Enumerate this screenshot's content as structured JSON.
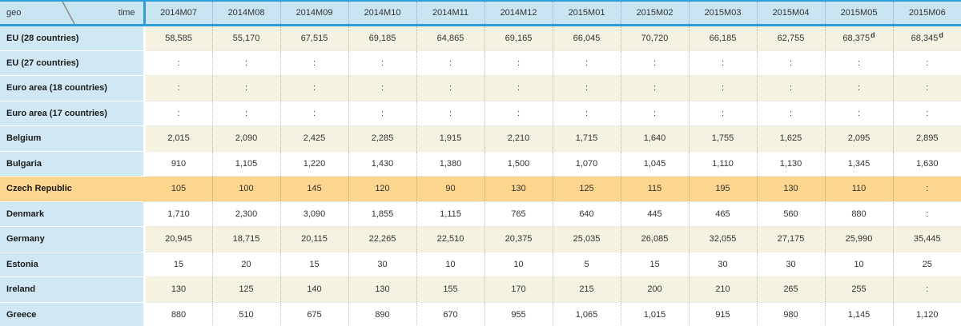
{
  "table": {
    "corner": {
      "row_dim": "geo",
      "col_dim": "time"
    },
    "columns": [
      "2014M07",
      "2014M08",
      "2014M09",
      "2014M10",
      "2014M11",
      "2014M12",
      "2015M01",
      "2015M02",
      "2015M03",
      "2015M04",
      "2015M05",
      "2015M06"
    ],
    "missing_symbol": ":",
    "rows": [
      {
        "label": "EU (28 countries)",
        "values": [
          "58,585",
          "55,170",
          "67,515",
          "69,185",
          "64,865",
          "69,165",
          "66,045",
          "70,720",
          "66,185",
          "62,755",
          {
            "v": "68,375",
            "flag": "d"
          },
          {
            "v": "68,345",
            "flag": "d"
          }
        ]
      },
      {
        "label": "EU (27 countries)",
        "values": [
          ":",
          ":",
          ":",
          ":",
          ":",
          ":",
          ":",
          ":",
          ":",
          ":",
          ":",
          ":"
        ]
      },
      {
        "label": "Euro area (18 countries)",
        "values": [
          ":",
          ":",
          ":",
          ":",
          ":",
          ":",
          ":",
          ":",
          ":",
          ":",
          ":",
          ":"
        ]
      },
      {
        "label": "Euro area (17 countries)",
        "values": [
          ":",
          ":",
          ":",
          ":",
          ":",
          ":",
          ":",
          ":",
          ":",
          ":",
          ":",
          ":"
        ]
      },
      {
        "label": "Belgium",
        "values": [
          "2,015",
          "2,090",
          "2,425",
          "2,285",
          "1,915",
          "2,210",
          "1,715",
          "1,640",
          "1,755",
          "1,625",
          "2,095",
          "2,895"
        ]
      },
      {
        "label": "Bulgaria",
        "values": [
          "910",
          "1,105",
          "1,220",
          "1,430",
          "1,380",
          "1,500",
          "1,070",
          "1,045",
          "1,110",
          "1,130",
          "1,345",
          "1,630"
        ]
      },
      {
        "label": "Czech Republic",
        "highlight": true,
        "values": [
          "105",
          "100",
          "145",
          "120",
          "90",
          "130",
          "125",
          "115",
          "195",
          "130",
          "110",
          ":"
        ]
      },
      {
        "label": "Denmark",
        "values": [
          "1,710",
          "2,300",
          "3,090",
          "1,855",
          "1,115",
          "765",
          "640",
          "445",
          "465",
          "560",
          "880",
          ":"
        ]
      },
      {
        "label": "Germany",
        "values": [
          "20,945",
          "18,715",
          "20,115",
          "22,265",
          "22,510",
          "20,375",
          "25,035",
          "26,085",
          "32,055",
          "27,175",
          "25,990",
          "35,445"
        ]
      },
      {
        "label": "Estonia",
        "values": [
          "15",
          "20",
          "15",
          "30",
          "10",
          "10",
          "5",
          "15",
          "30",
          "30",
          "10",
          "25"
        ]
      },
      {
        "label": "Ireland",
        "values": [
          "130",
          "125",
          "140",
          "130",
          "155",
          "170",
          "215",
          "200",
          "210",
          "265",
          "255",
          ":"
        ]
      },
      {
        "label": "Greece",
        "values": [
          "880",
          "510",
          "675",
          "890",
          "670",
          "955",
          "1,065",
          "1,015",
          "915",
          "980",
          "1,145",
          "1,120"
        ]
      }
    ]
  },
  "colors": {
    "blue_accent": "#2b9fd6",
    "header_bg": "#c9e5f2",
    "label_bg": "#cfe8f4",
    "beige_row": "#f6f2e2",
    "white_row": "#ffffff",
    "highlight_row": "#fcd68e",
    "text": "#333333",
    "label_text": "#1a1a1a",
    "diagonal_line": "#888888"
  }
}
